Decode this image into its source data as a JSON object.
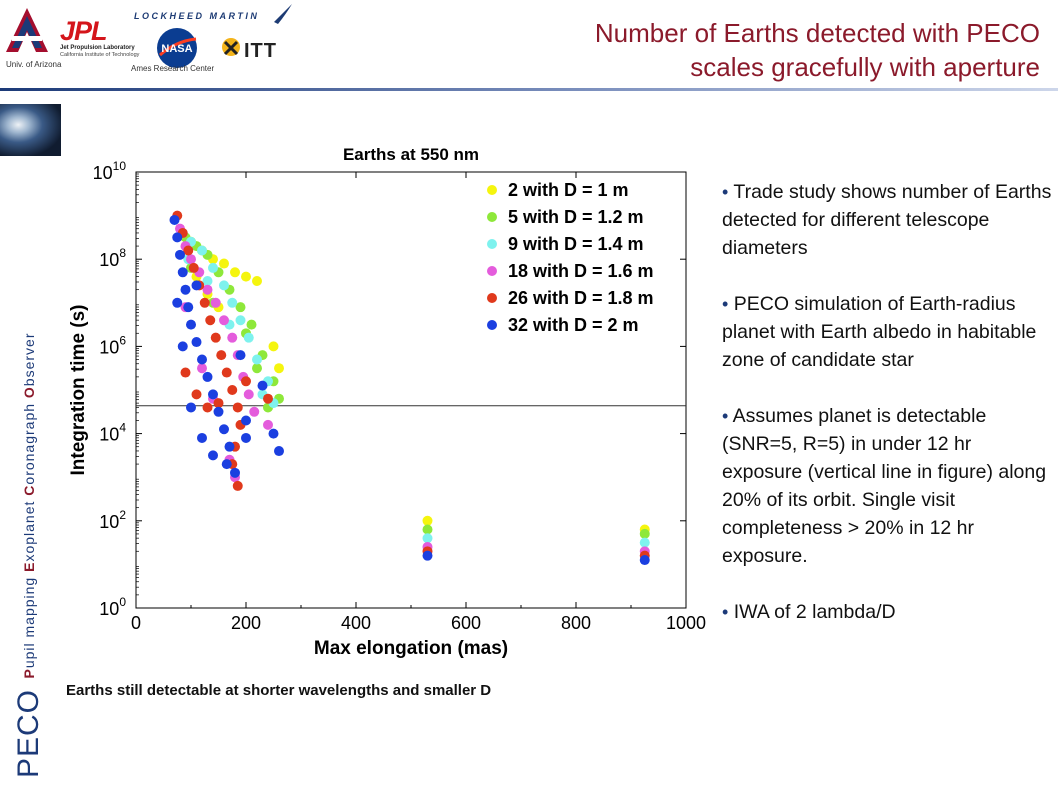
{
  "header": {
    "title_line1": "Number of Earths detected with PECO",
    "title_line2": "scales gracefully with aperture",
    "logos": {
      "ua_caption": "Univ. of Arizona",
      "jpl_mark": "JPL",
      "jpl_line1": "Jet Propulsion Laboratory",
      "jpl_line2": "California Institute of Technology",
      "lockheed": "LOCKHEED MARTIN",
      "nasa_mark": "NASA",
      "ames_caption": "Ames Research Center",
      "itt": "ITT"
    },
    "colors": {
      "title": "#8b1a2b",
      "rule": "#1c3a78"
    }
  },
  "sidebar": {
    "peco": "PECO",
    "words": [
      {
        "initial": "P",
        "rest": "upil mapping "
      },
      {
        "initial": "E",
        "rest": "xoplanet "
      },
      {
        "initial": "C",
        "rest": "oronagraph "
      },
      {
        "initial": "O",
        "rest": "bserver"
      }
    ]
  },
  "chart_data": {
    "type": "scatter",
    "title": "Earths at 550 nm",
    "xlabel": "Max elongation (mas)",
    "ylabel": "Integration time (s)",
    "xlim": [
      0,
      1000
    ],
    "ylim_log10": [
      0,
      10
    ],
    "y_scale": "log",
    "x_ticks": [
      "0",
      "200",
      "400",
      "600",
      "800",
      "1000"
    ],
    "y_ticks": [
      {
        "base": "10",
        "exp": "0"
      },
      {
        "base": "10",
        "exp": "2"
      },
      {
        "base": "10",
        "exp": "4"
      },
      {
        "base": "10",
        "exp": "6"
      },
      {
        "base": "10",
        "exp": "8"
      },
      {
        "base": "10",
        "exp": "10"
      }
    ],
    "threshold_log10": 4.64,
    "grid": false,
    "legend_position": "top-right",
    "series": [
      {
        "name": "2 with D = 1 m",
        "color": "#f5f50e",
        "points": [
          [
            100,
            8.4
          ],
          [
            120,
            8.2
          ],
          [
            140,
            8.0
          ],
          [
            160,
            7.9
          ],
          [
            180,
            7.7
          ],
          [
            200,
            7.6
          ],
          [
            220,
            7.5
          ],
          [
            130,
            7.2
          ],
          [
            150,
            6.9
          ],
          [
            110,
            7.6
          ],
          [
            250,
            6.0
          ],
          [
            260,
            5.5
          ],
          [
            530,
            2.0
          ],
          [
            925,
            1.8
          ]
        ]
      },
      {
        "name": "5 with D = 1.2 m",
        "color": "#8ee83a",
        "points": [
          [
            90,
            8.5
          ],
          [
            110,
            8.3
          ],
          [
            130,
            8.1
          ],
          [
            150,
            7.7
          ],
          [
            170,
            7.3
          ],
          [
            190,
            6.9
          ],
          [
            210,
            6.5
          ],
          [
            230,
            5.8
          ],
          [
            250,
            5.2
          ],
          [
            260,
            4.8
          ],
          [
            100,
            7.8
          ],
          [
            140,
            7.0
          ],
          [
            200,
            6.3
          ],
          [
            220,
            5.5
          ],
          [
            240,
            4.6
          ],
          [
            530,
            1.8
          ],
          [
            925,
            1.7
          ]
        ]
      },
      {
        "name": "9 with D = 1.4 m",
        "color": "#7ef2ee",
        "points": [
          [
            85,
            8.6
          ],
          [
            100,
            8.4
          ],
          [
            120,
            8.2
          ],
          [
            140,
            7.8
          ],
          [
            160,
            7.4
          ],
          [
            175,
            7.0
          ],
          [
            190,
            6.6
          ],
          [
            205,
            6.2
          ],
          [
            220,
            5.7
          ],
          [
            240,
            5.2
          ],
          [
            250,
            4.7
          ],
          [
            95,
            8.0
          ],
          [
            130,
            7.5
          ],
          [
            170,
            6.5
          ],
          [
            230,
            4.9
          ],
          [
            530,
            1.6
          ],
          [
            925,
            1.5
          ]
        ]
      },
      {
        "name": "18 with D = 1.6 m",
        "color": "#e45cdc",
        "points": [
          [
            80,
            8.7
          ],
          [
            90,
            8.3
          ],
          [
            100,
            8.0
          ],
          [
            115,
            7.7
          ],
          [
            130,
            7.3
          ],
          [
            145,
            7.0
          ],
          [
            160,
            6.6
          ],
          [
            175,
            6.2
          ],
          [
            185,
            5.8
          ],
          [
            195,
            5.3
          ],
          [
            205,
            4.9
          ],
          [
            215,
            4.5
          ],
          [
            170,
            3.4
          ],
          [
            180,
            3.0
          ],
          [
            120,
            5.5
          ],
          [
            240,
            4.2
          ],
          [
            90,
            6.9
          ],
          [
            140,
            4.8
          ],
          [
            530,
            1.4
          ],
          [
            925,
            1.3
          ]
        ]
      },
      {
        "name": "26 with D = 1.8 m",
        "color": "#e0391c",
        "points": [
          [
            75,
            9.0
          ],
          [
            85,
            8.6
          ],
          [
            95,
            8.2
          ],
          [
            105,
            7.8
          ],
          [
            115,
            7.4
          ],
          [
            125,
            7.0
          ],
          [
            135,
            6.6
          ],
          [
            145,
            6.2
          ],
          [
            155,
            5.8
          ],
          [
            165,
            5.4
          ],
          [
            175,
            5.0
          ],
          [
            185,
            4.6
          ],
          [
            190,
            4.2
          ],
          [
            180,
            3.7
          ],
          [
            175,
            3.3
          ],
          [
            185,
            2.8
          ],
          [
            110,
            4.9
          ],
          [
            130,
            4.6
          ],
          [
            200,
            5.2
          ],
          [
            150,
            4.7
          ],
          [
            90,
            5.4
          ],
          [
            240,
            4.8
          ],
          [
            530,
            1.3
          ],
          [
            925,
            1.2
          ]
        ]
      },
      {
        "name": "32 with D = 2 m",
        "color": "#1b3fe0",
        "points": [
          [
            70,
            8.9
          ],
          [
            75,
            8.5
          ],
          [
            80,
            8.1
          ],
          [
            85,
            7.7
          ],
          [
            90,
            7.3
          ],
          [
            95,
            6.9
          ],
          [
            100,
            6.5
          ],
          [
            110,
            6.1
          ],
          [
            120,
            5.7
          ],
          [
            130,
            5.3
          ],
          [
            140,
            4.9
          ],
          [
            150,
            4.5
          ],
          [
            160,
            4.1
          ],
          [
            170,
            3.7
          ],
          [
            165,
            3.3
          ],
          [
            180,
            3.1
          ],
          [
            120,
            3.9
          ],
          [
            100,
            4.6
          ],
          [
            85,
            6.0
          ],
          [
            140,
            3.5
          ],
          [
            190,
            5.8
          ],
          [
            200,
            4.3
          ],
          [
            230,
            5.1
          ],
          [
            250,
            4.0
          ],
          [
            260,
            3.6
          ],
          [
            200,
            3.9
          ],
          [
            75,
            7.0
          ],
          [
            110,
            7.4
          ],
          [
            530,
            1.2
          ],
          [
            925,
            1.1
          ]
        ]
      }
    ]
  },
  "caption": "Earths still detectable at shorter wavelengths and smaller D",
  "bullets": [
    "Trade study shows number of Earths detected for different telescope diameters",
    "PECO simulation of Earth-radius planet with Earth albedo in habitable zone of candidate star",
    "Assumes planet is detectable (SNR=5, R=5) in under 12 hr exposure (vertical line in figure) along 20% of its orbit. Single visit completeness > 20% in 12 hr exposure.",
    "IWA of 2 lambda/D"
  ]
}
